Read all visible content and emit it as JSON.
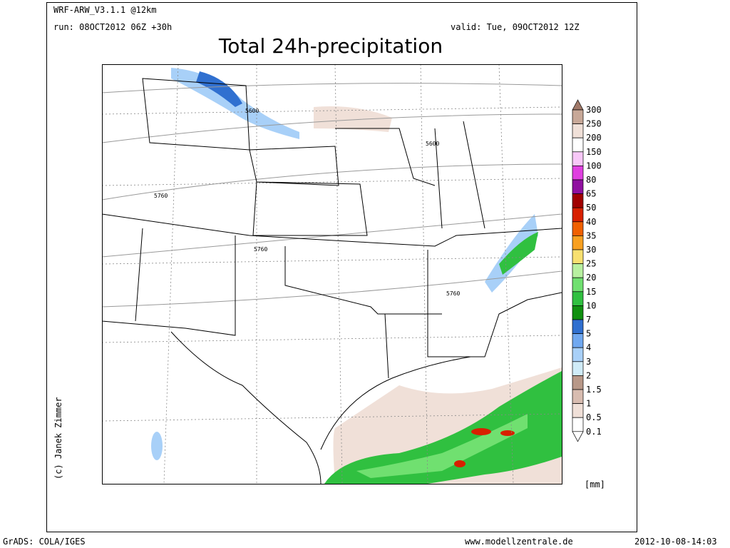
{
  "header": {
    "model": "WRF-ARW_V3.1.1 @12km",
    "run": "run: 08OCT2012 06Z +30h",
    "valid": "valid: Tue, 09OCT2012 12Z",
    "title": "Total 24h-precipitation"
  },
  "credit": "(c) Janek Zimmer",
  "contour_labels": [
    "5600",
    "5600",
    "5760",
    "5760",
    "5760"
  ],
  "colorbar": {
    "labels": [
      "300",
      "250",
      "200",
      "150",
      "100",
      "80",
      "65",
      "50",
      "40",
      "35",
      "30",
      "25",
      "20",
      "15",
      "10",
      "7",
      "5",
      "4",
      "3",
      "2",
      "1.5",
      "1",
      "0.5",
      "0.1"
    ],
    "colors": [
      "#a07868",
      "#c8a898",
      "#f0e0d8",
      "#ffffff",
      "#f8c8f8",
      "#e040e0",
      "#9010a0",
      "#a00000",
      "#d82000",
      "#f06000",
      "#f8a020",
      "#f8e070",
      "#b8f0a0",
      "#70e070",
      "#30c040",
      "#109010",
      "#3070d0",
      "#70a8f0",
      "#a8d0f8",
      "#d0ecf8",
      "#b89888",
      "#d8bcb0",
      "#f0e0d8",
      "#ffffff"
    ],
    "unit": "[mm]"
  },
  "footer": {
    "left": "GrADS: COLA/IGES",
    "center": "www.modellzentrale.de",
    "right": "2012-10-08-14:03"
  }
}
